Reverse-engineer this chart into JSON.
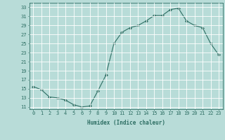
{
  "x": [
    0,
    1,
    2,
    3,
    4,
    5,
    6,
    7,
    8,
    9,
    10,
    11,
    12,
    13,
    14,
    15,
    16,
    17,
    18,
    19,
    20,
    21,
    22,
    23
  ],
  "y": [
    15.5,
    14.8,
    13.2,
    13.0,
    12.5,
    11.5,
    11.0,
    11.2,
    14.5,
    18.0,
    25.0,
    27.5,
    28.5,
    29.0,
    30.0,
    31.2,
    31.2,
    32.5,
    32.8,
    30.0,
    29.0,
    28.5,
    25.0,
    22.5
  ],
  "line_color": "#2d6e63",
  "marker": "D",
  "markersize": 2.0,
  "bg_color": "#b8dcd8",
  "grid_color": "#d8ecec",
  "xlabel": "Humidex (Indice chaleur)",
  "xlim": [
    -0.5,
    23.5
  ],
  "ylim": [
    10.5,
    34
  ],
  "yticks": [
    11,
    13,
    15,
    17,
    19,
    21,
    23,
    25,
    27,
    29,
    31,
    33
  ],
  "xticks": [
    0,
    1,
    2,
    3,
    4,
    5,
    6,
    7,
    8,
    9,
    10,
    11,
    12,
    13,
    14,
    15,
    16,
    17,
    18,
    19,
    20,
    21,
    22,
    23
  ],
  "label_fontsize": 5.5,
  "tick_fontsize": 5.0
}
